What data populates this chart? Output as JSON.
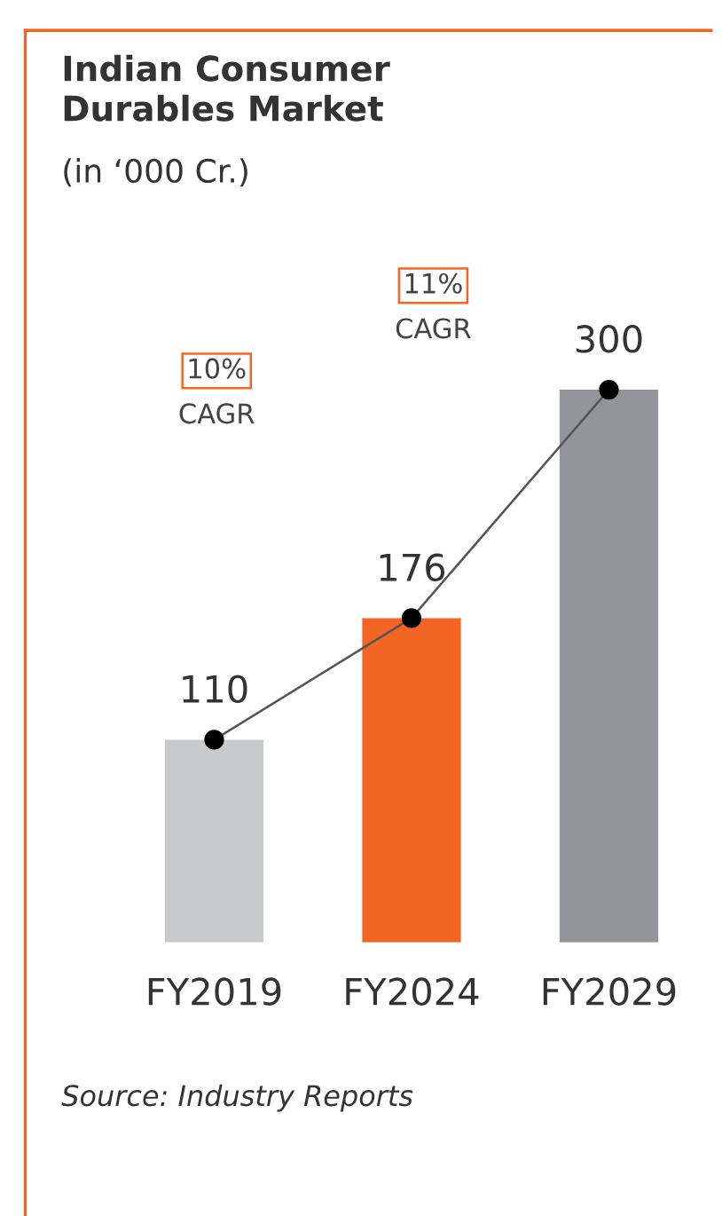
{
  "chart_data": {
    "type": "bar",
    "title": "Indian Consumer\nDurables Market",
    "subtitle": "(in ‘000 Cr.)",
    "categories": [
      "FY2019",
      "FY2024",
      "FY2029"
    ],
    "series": [
      {
        "colors": [
          "#c8c9ca",
          "#f26522",
          "#939598"
        ],
        "values": [
          110,
          176,
          300
        ],
        "value_labels": [
          "110",
          "176",
          "300"
        ]
      },
      {
        "type": "line",
        "color": "#555555",
        "marker": "circle",
        "values": [
          110,
          176,
          300
        ]
      }
    ],
    "grid": false,
    "legend": false,
    "tick_labels": "x",
    "annotations": [
      "10%",
      "CAGR",
      "11%",
      "CAGR",
      "Source: Industry Reports"
    ]
  }
}
